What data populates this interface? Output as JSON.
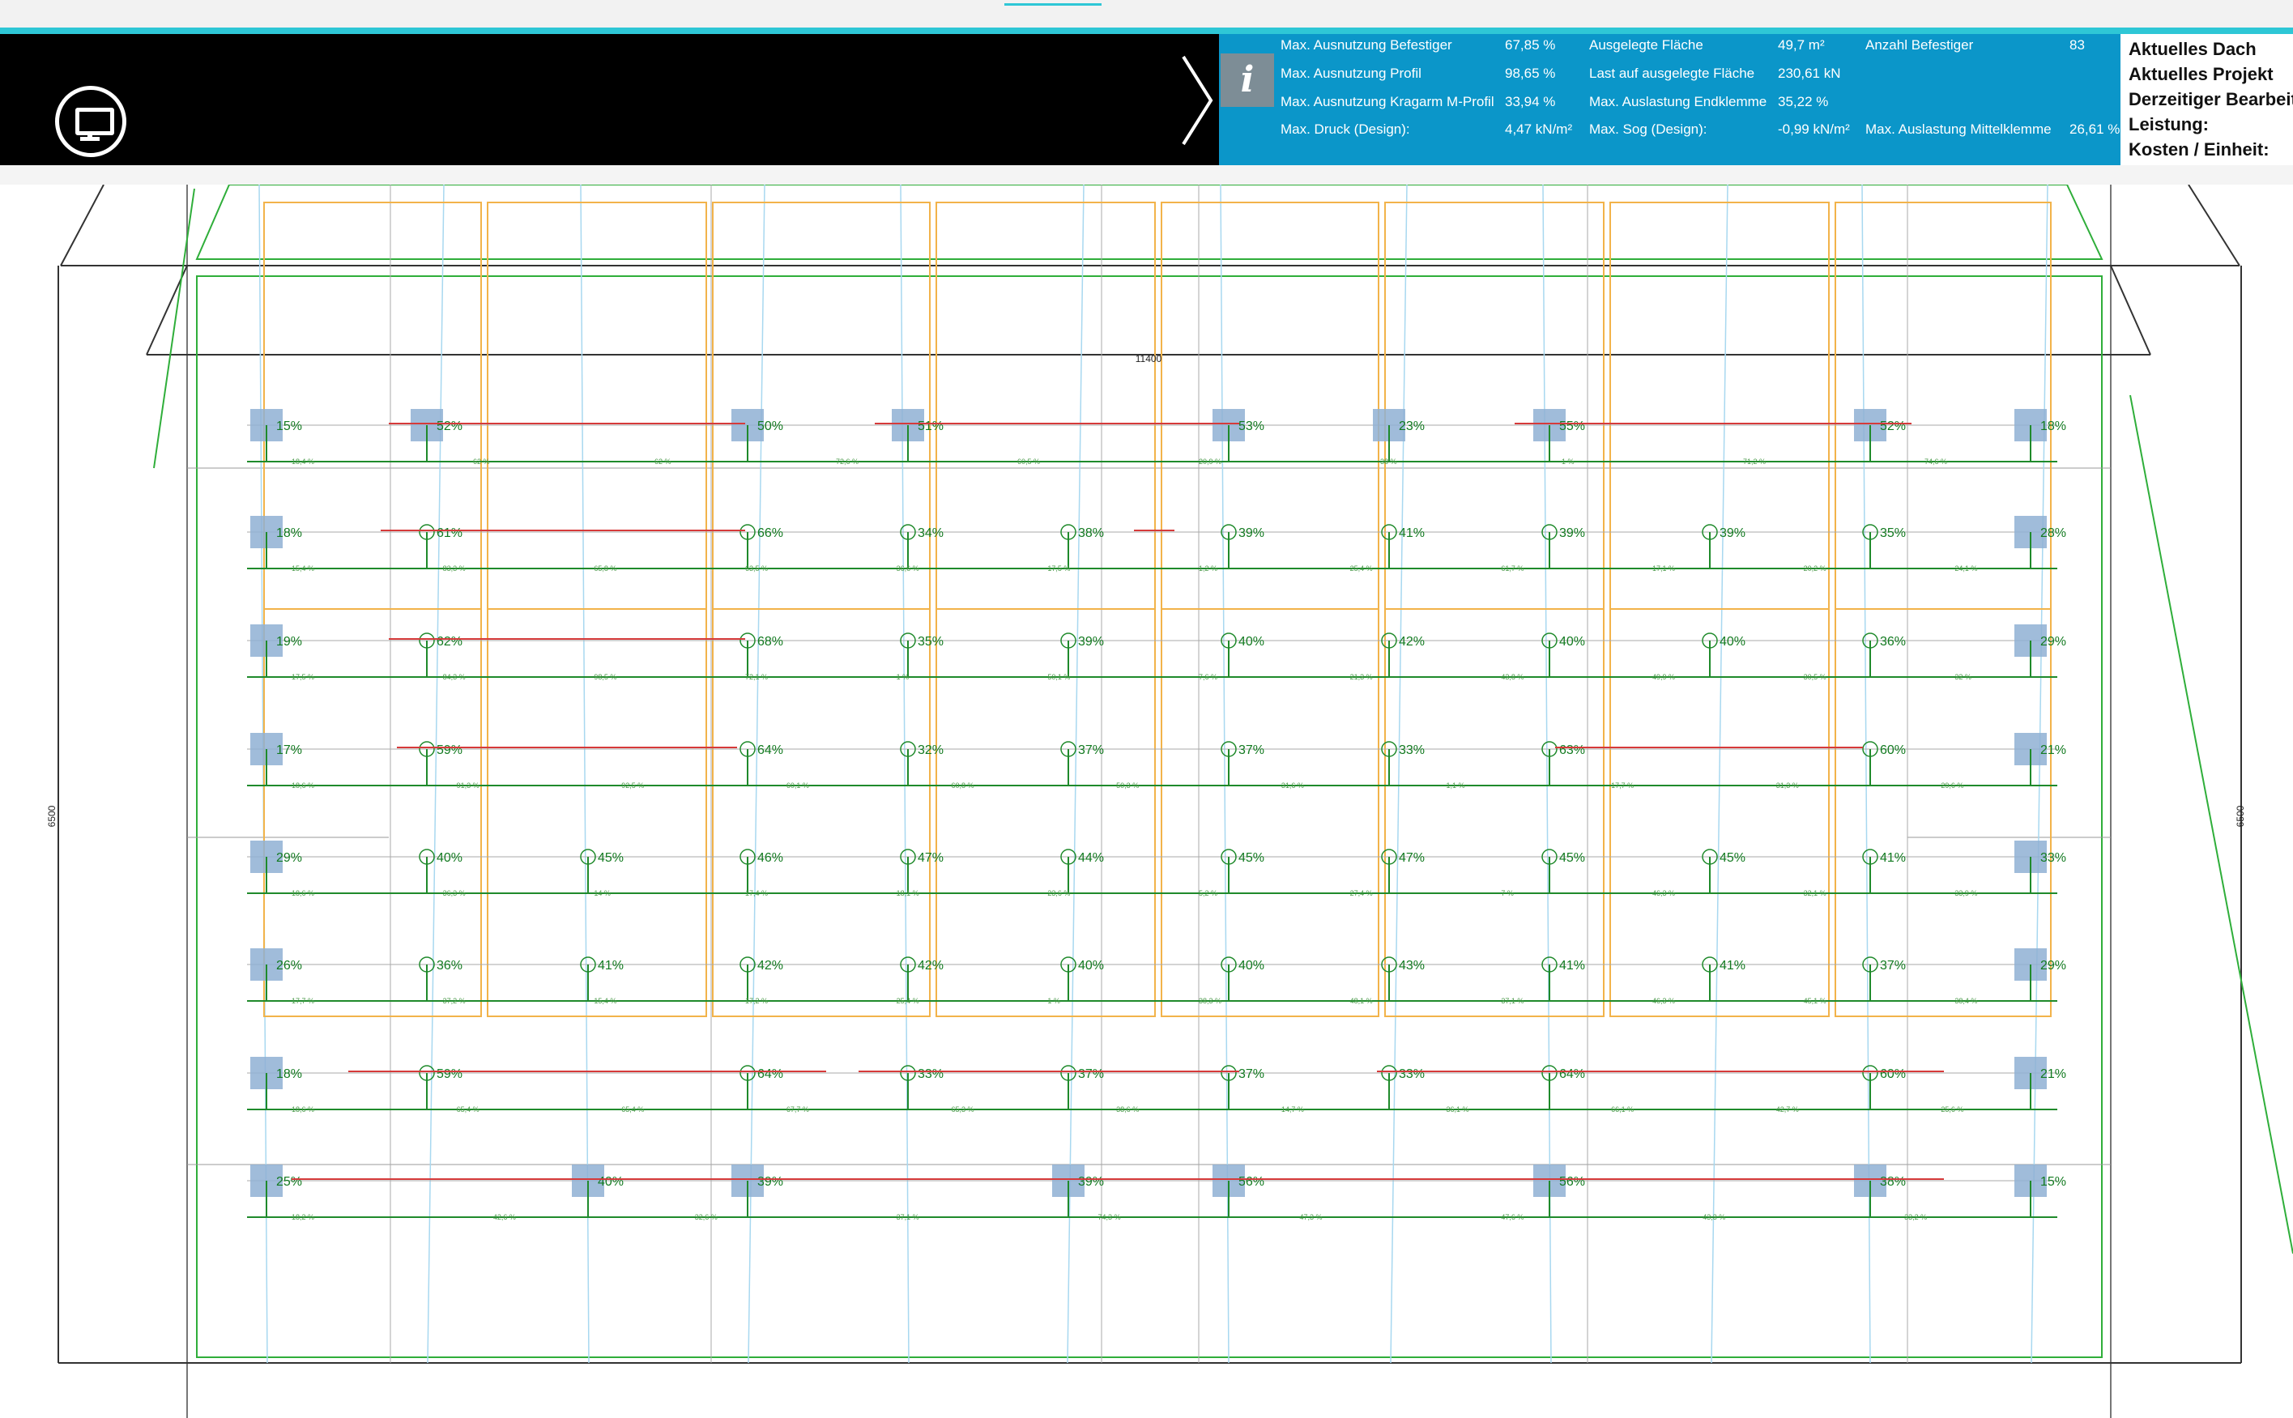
{
  "screenshot_button": {
    "label": "Screenshot aufnehmen",
    "icon": "monitor-icon"
  },
  "collapse_icon": "chevron-right-icon",
  "info_icon": "info-icon",
  "stats": [
    {
      "label": "Max. Ausnutzung Befestiger",
      "value": "67,85 %"
    },
    {
      "label": "Max. Ausnutzung Profil",
      "value": "98,65 %"
    },
    {
      "label": "Max. Ausnutzung Kragarm M-Profil",
      "value": "33,94 %"
    },
    {
      "label": "Max. Druck (Design):",
      "value": "4,47 kN/m²"
    },
    {
      "label": "Ausgelegte Fläche",
      "value": "49,7 m²"
    },
    {
      "label": "Last auf ausgelegte Fläche",
      "value": "230,61 kN"
    },
    {
      "label": "Max. Auslastung Endklemme",
      "value": "35,22 %"
    },
    {
      "label": "Max. Sog (Design):",
      "value": "-0,99 kN/m²"
    },
    {
      "label": "Anzahl Befestiger",
      "value": "83"
    },
    {
      "label": "Max. Auslastung Mittelklemme",
      "value": "26,61 %"
    }
  ],
  "status": {
    "roof": "Aktuelles Dach",
    "project": "Aktuelles Projekt",
    "editor": "Derzeitiger Bearbeiter",
    "power": "Leistung:",
    "cost": "Kosten / Einheit:"
  },
  "plan": {
    "width_dim": "11400",
    "height_dim_left": "6500",
    "height_dim_right": "6500",
    "rows": [
      [
        "15%",
        "52%",
        "",
        "50%",
        "51%",
        "",
        "53%",
        "23%",
        "55%",
        "",
        "52%",
        "18%"
      ],
      [
        "18%",
        "61%",
        "",
        "66%",
        "34%",
        "38%",
        "39%",
        "41%",
        "39%",
        "39%",
        "35%",
        "28%"
      ],
      [
        "19%",
        "62%",
        "",
        "68%",
        "35%",
        "39%",
        "40%",
        "42%",
        "40%",
        "40%",
        "36%",
        "29%"
      ],
      [
        "17%",
        "59%",
        "",
        "64%",
        "32%",
        "37%",
        "37%",
        "33%",
        "63%",
        "",
        "60%",
        "21%"
      ],
      [
        "29%",
        "40%",
        "45%",
        "46%",
        "47%",
        "44%",
        "45%",
        "47%",
        "45%",
        "45%",
        "41%",
        "33%"
      ],
      [
        "26%",
        "36%",
        "41%",
        "42%",
        "42%",
        "40%",
        "40%",
        "43%",
        "41%",
        "41%",
        "37%",
        "29%"
      ],
      [
        "18%",
        "59%",
        "",
        "64%",
        "33%",
        "37%",
        "37%",
        "33%",
        "64%",
        "",
        "60%",
        "21%"
      ],
      [
        "25%",
        "",
        "40%",
        "39%",
        "",
        "39%",
        "56%",
        "",
        "56%",
        "",
        "38%",
        "15%"
      ]
    ],
    "sub_labels": [
      [
        "18,4 %",
        "62 %",
        "62 %",
        "72,6 %",
        "60,5 %",
        "20,9 %",
        "38 %",
        "1 %",
        "71,2 %",
        "74,6 %"
      ],
      [
        "15,4 %",
        "83,3 %",
        "65,8 %",
        "63,5 %",
        "36,6 %",
        "17,5 %",
        "1,2 %",
        "25,4 %",
        "61,7 %",
        "17,1 %",
        "20,2 %",
        "24,1 %"
      ],
      [
        "17,5 %",
        "84,3 %",
        "98,5 %",
        "72,1 %",
        "1 %",
        "50,1 %",
        "7,6 %",
        "21,3 %",
        "43,8 %",
        "49,9 %",
        "30,5 %",
        "32 %"
      ],
      [
        "18,6 %",
        "91,3 %",
        "92,5 %",
        "60,1 %",
        "60,8 %",
        "50,3 %",
        "31,6 %",
        "1,1 %",
        "17,7 %",
        "31,3 %",
        "29,6 %"
      ],
      [
        "18,6 %",
        "36,3 %",
        "14 %",
        "17,4 %",
        "18,1 %",
        "23,6 %",
        "5,2 %",
        "27,4 %",
        "7 %",
        "46,3 %",
        "32,1 %",
        "33,9 %"
      ],
      [
        "17,7 %",
        "37,2 %",
        "15,4 %",
        "17,2 %",
        "25,4 %",
        "1 %",
        "38,3 %",
        "48,1 %",
        "37,1 %",
        "46,3 %",
        "45,1 %",
        "38,4 %"
      ],
      [
        "18,6 %",
        "65,4 %",
        "65,4 %",
        "67,7 %",
        "65,3 %",
        "38,6 %",
        "14,7 %",
        "36,1 %",
        "66,1 %",
        "42,7 %",
        "25,6 %"
      ],
      [
        "18,2 %",
        "42,6 %",
        "32,6 %",
        "37,1 %",
        "74,3 %",
        "47,3 %",
        "47,6 %",
        "43,3 %",
        "33,2 %"
      ]
    ]
  }
}
